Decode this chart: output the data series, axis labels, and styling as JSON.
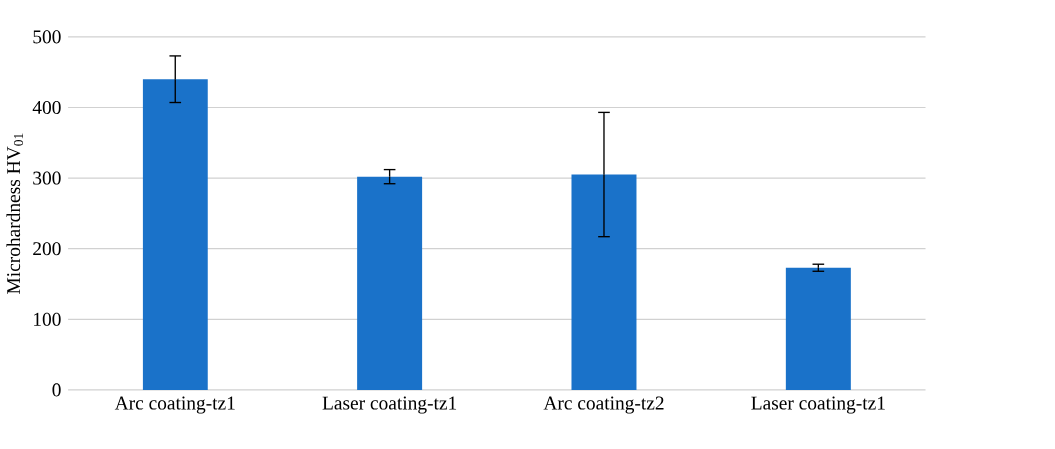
{
  "chart_data": {
    "type": "bar",
    "ylabel": "Microhardness HV$_{01}$",
    "categories": [
      "Arc coating-tz1",
      "Laser coating-tz1",
      "Arc coating-tz2",
      "Laser coating-tz1"
    ],
    "values": [
      440,
      302,
      305,
      173
    ],
    "errors": [
      33,
      10,
      88,
      5
    ],
    "color": "#1a72c9",
    "ylim": [
      0,
      500
    ],
    "yticks": [
      0,
      100,
      200,
      300,
      400,
      500
    ],
    "grid": "y"
  }
}
